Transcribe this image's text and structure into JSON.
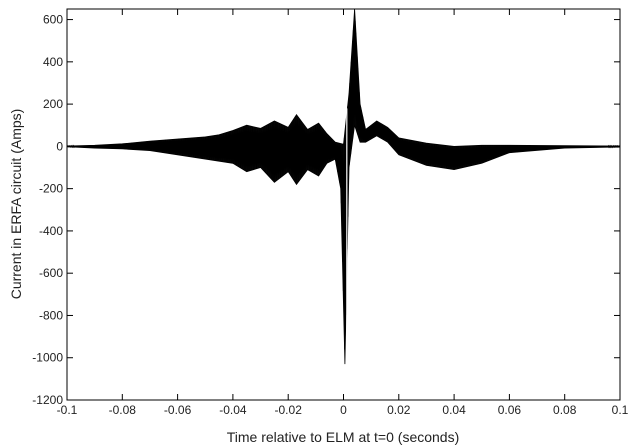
{
  "chart_data": {
    "type": "line",
    "title": "",
    "xlabel": "Time relative to ELM at t=0 (seconds)",
    "ylabel": "Current in ERFA circuit (Amps)",
    "xlim": [
      -0.1,
      0.1
    ],
    "ylim": [
      -1200,
      650
    ],
    "x_ticks": [
      -0.1,
      -0.08,
      -0.06,
      -0.04,
      -0.02,
      0,
      0.02,
      0.04,
      0.06,
      0.08,
      0.1
    ],
    "x_tick_labels": [
      "-0.1",
      "-0.08",
      "-0.06",
      "-0.04",
      "-0.02",
      "0",
      "0.02",
      "0.04",
      "0.06",
      "0.08",
      "0.1"
    ],
    "y_ticks": [
      -1200,
      -1000,
      -800,
      -600,
      -400,
      -200,
      0,
      200,
      400,
      600
    ],
    "y_tick_labels": [
      "-1200",
      "-1000",
      "-800",
      "-600",
      "-400",
      "-200",
      "0",
      "200",
      "400",
      "600"
    ],
    "grid": false,
    "line_color": "#000000",
    "series": [
      {
        "name": "",
        "upper_envelope": [
          [
            -0.1,
            2
          ],
          [
            -0.09,
            5
          ],
          [
            -0.08,
            12
          ],
          [
            -0.07,
            25
          ],
          [
            -0.06,
            35
          ],
          [
            -0.05,
            45
          ],
          [
            -0.045,
            55
          ],
          [
            -0.04,
            75
          ],
          [
            -0.035,
            100
          ],
          [
            -0.03,
            85
          ],
          [
            -0.025,
            120
          ],
          [
            -0.02,
            90
          ],
          [
            -0.017,
            150
          ],
          [
            -0.013,
            80
          ],
          [
            -0.009,
            110
          ],
          [
            -0.006,
            60
          ],
          [
            -0.003,
            20
          ],
          [
            0,
            10
          ],
          [
            0.002,
            250
          ],
          [
            0.004,
            650
          ],
          [
            0.006,
            200
          ],
          [
            0.008,
            80
          ],
          [
            0.012,
            120
          ],
          [
            0.016,
            90
          ],
          [
            0.02,
            40
          ],
          [
            0.03,
            15
          ],
          [
            0.04,
            0
          ],
          [
            0.05,
            5
          ],
          [
            0.06,
            5
          ],
          [
            0.08,
            3
          ],
          [
            0.1,
            2
          ]
        ],
        "lower_envelope": [
          [
            -0.1,
            -2
          ],
          [
            -0.09,
            -8
          ],
          [
            -0.08,
            -12
          ],
          [
            -0.07,
            -20
          ],
          [
            -0.06,
            -40
          ],
          [
            -0.05,
            -60
          ],
          [
            -0.045,
            -70
          ],
          [
            -0.04,
            -80
          ],
          [
            -0.035,
            -120
          ],
          [
            -0.03,
            -100
          ],
          [
            -0.025,
            -170
          ],
          [
            -0.02,
            -120
          ],
          [
            -0.017,
            -180
          ],
          [
            -0.013,
            -110
          ],
          [
            -0.009,
            -140
          ],
          [
            -0.006,
            -80
          ],
          [
            -0.003,
            -60
          ],
          [
            -0.001,
            -200
          ],
          [
            0.0005,
            -1030
          ],
          [
            0.002,
            -100
          ],
          [
            0.004,
            100
          ],
          [
            0.006,
            20
          ],
          [
            0.008,
            20
          ],
          [
            0.012,
            50
          ],
          [
            0.016,
            20
          ],
          [
            0.02,
            -40
          ],
          [
            0.03,
            -90
          ],
          [
            0.04,
            -110
          ],
          [
            0.05,
            -80
          ],
          [
            0.06,
            -30
          ],
          [
            0.08,
            -8
          ],
          [
            0.1,
            -3
          ]
        ]
      }
    ]
  }
}
